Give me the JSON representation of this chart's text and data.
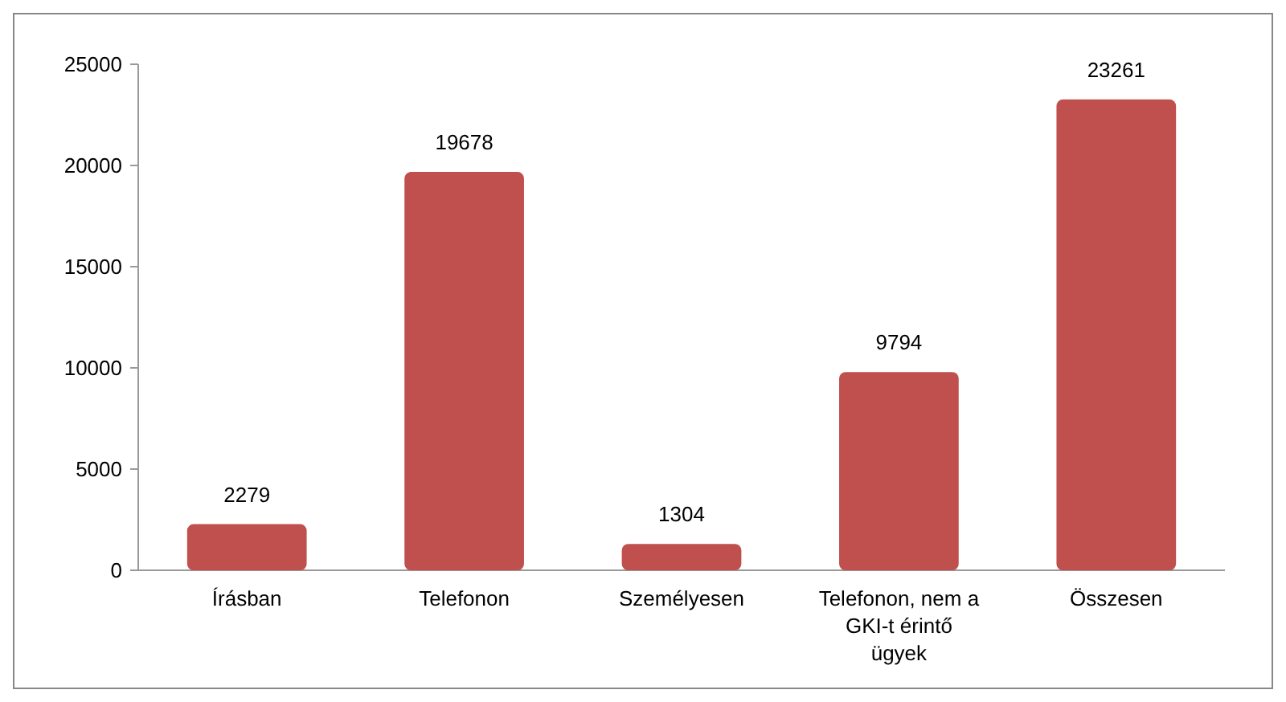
{
  "chart_data": {
    "type": "bar",
    "categories": [
      "Írásban",
      "Telefonon",
      "Személyesen",
      "Telefonon, nem a GKI-t érintő ügyek",
      "Összesen"
    ],
    "values": [
      2279,
      19678,
      1304,
      9794,
      23261
    ],
    "color": "#c0504d",
    "ylim": [
      0,
      25000
    ],
    "yticks": [
      0,
      5000,
      10000,
      15000,
      20000,
      25000
    ],
    "grid": false,
    "data_labels": true
  }
}
